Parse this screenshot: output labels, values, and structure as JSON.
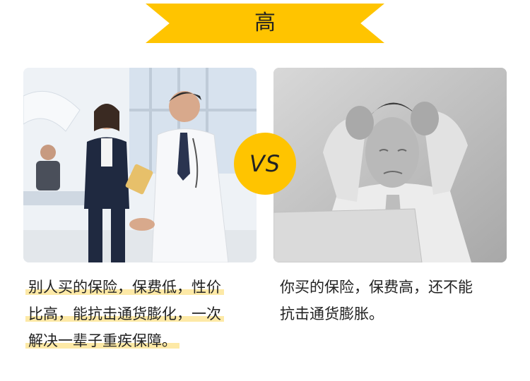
{
  "banner": {
    "title": "高"
  },
  "vs_label": "VS",
  "left": {
    "lines": [
      "别人买的保险，保费低，性价",
      "比高，能抗击通货膨化，一次",
      "解决一辈子重疾保障。"
    ]
  },
  "right": {
    "lines": [
      "你买的保险，保费高，还不能",
      "抗击通货膨胀。"
    ]
  },
  "colors": {
    "accent": "#ffc400",
    "highlight": "#fde9a6"
  }
}
